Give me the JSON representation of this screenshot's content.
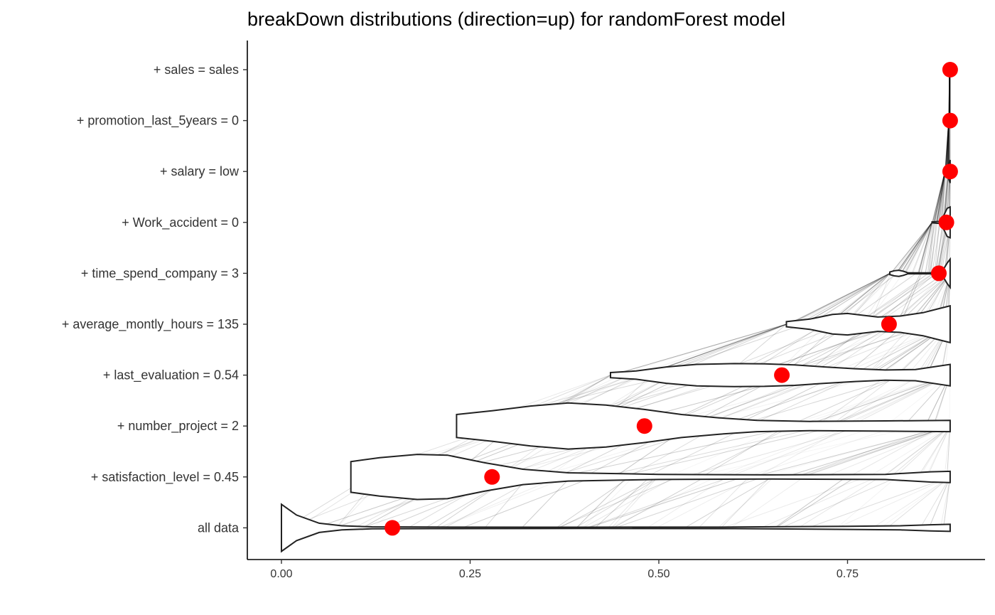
{
  "chart_data": {
    "type": "violin",
    "title": "breakDown distributions (direction=up) for randomForest model",
    "xlabel": "",
    "ylabel": "",
    "xlim": [
      -0.09,
      0.93
    ],
    "x_ticks": [
      0.0,
      0.25,
      0.5,
      0.75
    ],
    "x_tick_labels": [
      "0.00",
      "0.25",
      "0.50",
      "0.75"
    ],
    "grid": false,
    "legend": "none",
    "point_color": "#ff0000",
    "violin_fill": "#ffffff",
    "violin_stroke": "#222222",
    "categories": [
      "all data",
      "+ satisfaction_level = 0.45",
      "+ number_project = 2",
      "+ last_evaluation = 0.54",
      "+ average_montly_hours = 135",
      "+ time_spend_company = 3",
      "+ Work_accident = 0",
      "+ salary = low",
      "+ promotion_last_5years = 0",
      "+ sales = sales"
    ],
    "points": [
      0.147,
      0.279,
      0.481,
      0.663,
      0.805,
      0.871,
      0.881,
      0.886,
      0.886,
      0.886
    ],
    "violins": [
      {
        "category": "all data",
        "min": 0.0,
        "max": 0.886,
        "profile": [
          [
            0.0,
            0.92
          ],
          [
            0.02,
            0.5
          ],
          [
            0.05,
            0.18
          ],
          [
            0.08,
            0.08
          ],
          [
            0.12,
            0.04
          ],
          [
            0.2,
            0.03
          ],
          [
            0.4,
            0.025
          ],
          [
            0.6,
            0.03
          ],
          [
            0.75,
            0.06
          ],
          [
            0.82,
            0.08
          ],
          [
            0.86,
            0.12
          ],
          [
            0.886,
            0.14
          ]
        ]
      },
      {
        "category": "+ satisfaction_level = 0.45",
        "min": 0.092,
        "max": 0.886,
        "profile": [
          [
            0.092,
            0.6
          ],
          [
            0.13,
            0.75
          ],
          [
            0.18,
            0.88
          ],
          [
            0.22,
            0.85
          ],
          [
            0.27,
            0.55
          ],
          [
            0.32,
            0.3
          ],
          [
            0.38,
            0.16
          ],
          [
            0.5,
            0.1
          ],
          [
            0.65,
            0.08
          ],
          [
            0.8,
            0.1
          ],
          [
            0.86,
            0.2
          ],
          [
            0.886,
            0.22
          ]
        ]
      },
      {
        "category": "+ number_project = 2",
        "min": 0.232,
        "max": 0.886,
        "profile": [
          [
            0.232,
            0.45
          ],
          [
            0.28,
            0.6
          ],
          [
            0.33,
            0.78
          ],
          [
            0.38,
            0.9
          ],
          [
            0.43,
            0.82
          ],
          [
            0.48,
            0.65
          ],
          [
            0.53,
            0.45
          ],
          [
            0.58,
            0.32
          ],
          [
            0.63,
            0.22
          ],
          [
            0.7,
            0.18
          ],
          [
            0.8,
            0.2
          ],
          [
            0.886,
            0.22
          ]
        ]
      },
      {
        "category": "+ last_evaluation = 0.54",
        "min": 0.436,
        "max": 0.886,
        "profile": [
          [
            0.436,
            0.1
          ],
          [
            0.47,
            0.16
          ],
          [
            0.51,
            0.32
          ],
          [
            0.55,
            0.42
          ],
          [
            0.6,
            0.45
          ],
          [
            0.64,
            0.44
          ],
          [
            0.68,
            0.4
          ],
          [
            0.72,
            0.32
          ],
          [
            0.76,
            0.25
          ],
          [
            0.8,
            0.2
          ],
          [
            0.84,
            0.22
          ],
          [
            0.886,
            0.42
          ]
        ]
      },
      {
        "category": "+ average_montly_hours = 135",
        "min": 0.669,
        "max": 0.886,
        "profile": [
          [
            0.669,
            0.1
          ],
          [
            0.7,
            0.2
          ],
          [
            0.73,
            0.38
          ],
          [
            0.75,
            0.42
          ],
          [
            0.77,
            0.35
          ],
          [
            0.79,
            0.28
          ],
          [
            0.82,
            0.32
          ],
          [
            0.85,
            0.45
          ],
          [
            0.87,
            0.6
          ],
          [
            0.886,
            0.72
          ]
        ]
      },
      {
        "category": "+ time_spend_company = 3",
        "min": 0.806,
        "max": 0.886,
        "profile": [
          [
            0.806,
            0.05
          ],
          [
            0.812,
            0.1
          ],
          [
            0.818,
            0.12
          ],
          [
            0.824,
            0.08
          ],
          [
            0.83,
            0.02
          ],
          [
            0.86,
            0.02
          ],
          [
            0.873,
            0.12
          ],
          [
            0.878,
            0.2
          ],
          [
            0.882,
            0.4
          ],
          [
            0.886,
            0.55
          ]
        ]
      },
      {
        "category": "+ Work_accident = 0",
        "min": 0.862,
        "max": 0.886,
        "profile": [
          [
            0.862,
            0.02
          ],
          [
            0.872,
            0.04
          ],
          [
            0.878,
            0.3
          ],
          [
            0.882,
            0.55
          ],
          [
            0.886,
            0.6
          ]
        ]
      },
      {
        "category": "+ salary = low",
        "min": 0.879,
        "max": 0.886,
        "profile": [
          [
            0.879,
            0.02
          ],
          [
            0.883,
            0.2
          ],
          [
            0.886,
            0.45
          ]
        ]
      },
      {
        "category": "+ promotion_last_5years = 0",
        "min": 0.884,
        "max": 0.886,
        "profile": [
          [
            0.884,
            0.1
          ],
          [
            0.886,
            0.3
          ]
        ]
      },
      {
        "category": "+ sales = sales",
        "min": 0.885,
        "max": 0.886,
        "profile": [
          [
            0.885,
            0.1
          ],
          [
            0.886,
            0.25
          ]
        ]
      }
    ]
  }
}
